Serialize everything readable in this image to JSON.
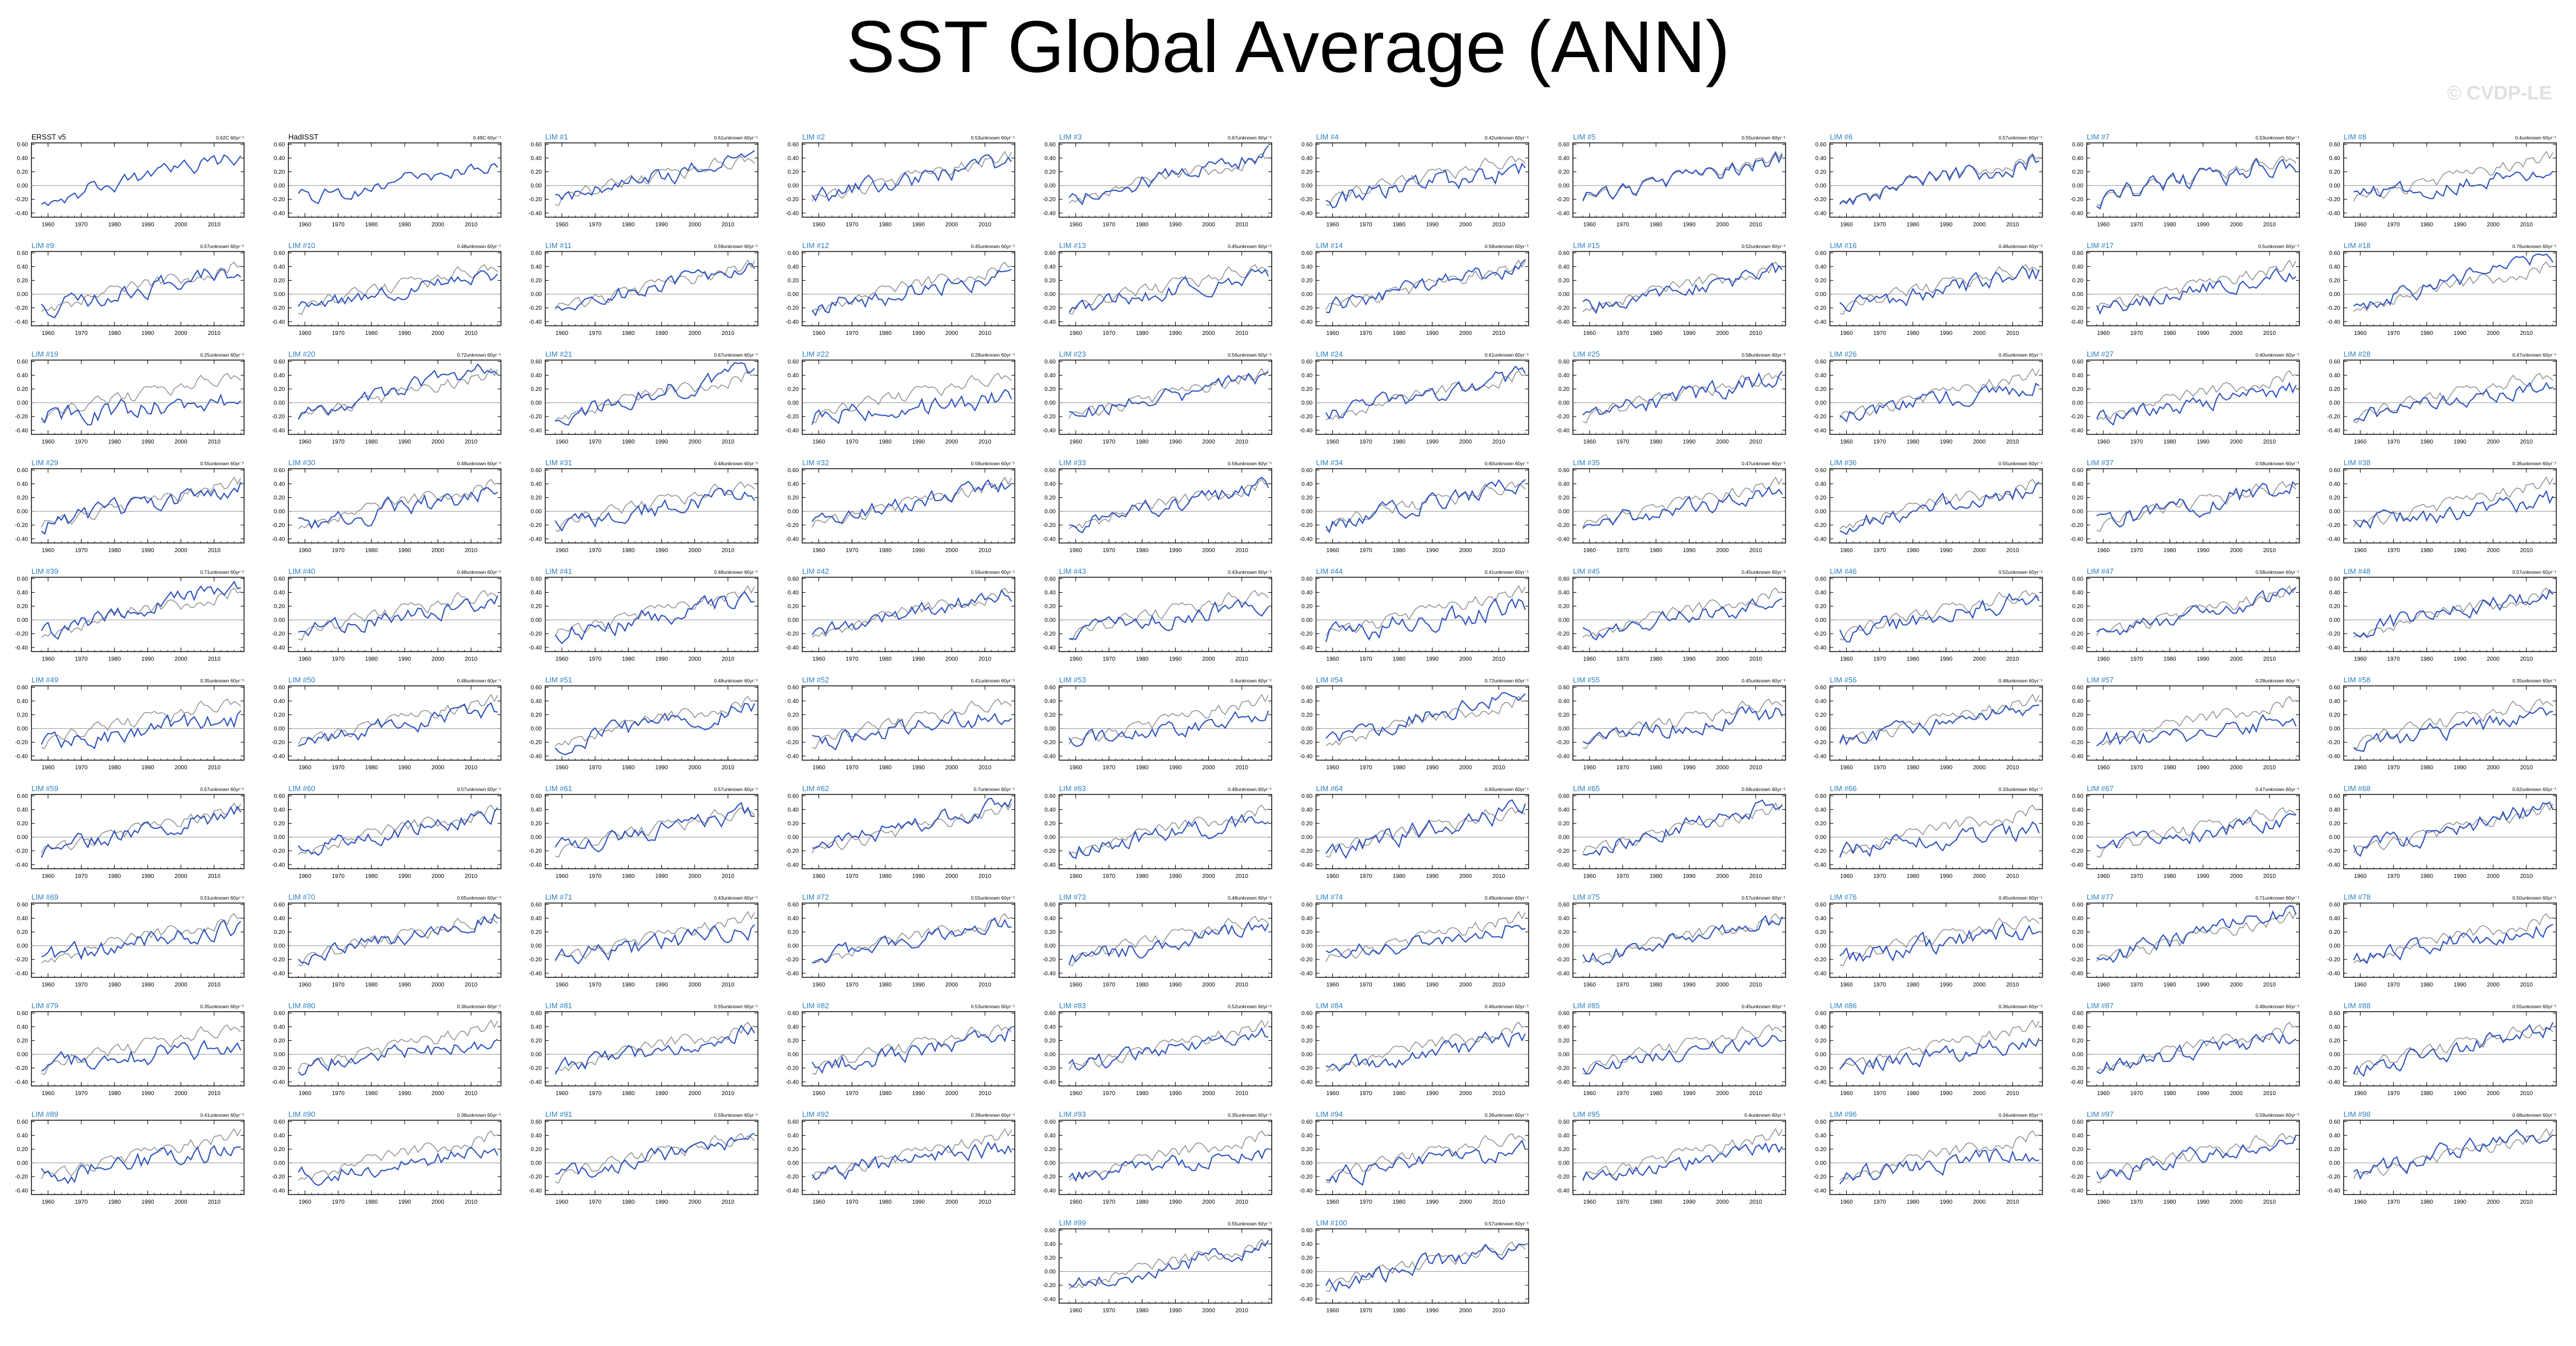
{
  "page": {
    "title": "SST Global Average (ANN)",
    "watermark": "© CVDP-LE"
  },
  "colors": {
    "model_line": "#2a4fbf",
    "obs_line": "#8a8a8a",
    "zero_line": "#9a9a9a",
    "panel_title_obs": "#000000",
    "panel_title_member": "#2a7fbf"
  },
  "chart_data": {
    "type": "line",
    "layout": "small-multiples grid, 10 columns",
    "x_tick_labels": [
      "1960",
      "1970",
      "1980",
      "1990",
      "2000",
      "2010"
    ],
    "y_tick_labels": [
      "0.60",
      "0.40",
      "0.20",
      "0.00",
      "-0.20",
      "-0.40"
    ],
    "xlim": [
      1955,
      2019
    ],
    "ylim": [
      -0.46,
      0.62
    ],
    "zero_line": true,
    "grid": false,
    "panels": [
      {
        "title": "ERSST v5",
        "trend": "0.62C 60yr⁻¹",
        "amp": 0.09,
        "lift": 0.0,
        "obs": true
      },
      {
        "title": "HadISST",
        "trend": "0.49C 60yr⁻¹",
        "amp": 0.09,
        "lift": 0.0,
        "obs": true
      },
      {
        "title": "LIM #1",
        "trend": "0.61unknown 60yr⁻¹",
        "amp": 0.1,
        "lift": 0.0
      },
      {
        "title": "LIM #2",
        "trend": "0.53unknown 60yr⁻¹",
        "amp": 0.11,
        "lift": 0.02
      },
      {
        "title": "LIM #3",
        "trend": "0.67unknown 60yr⁻¹",
        "amp": 0.1,
        "lift": 0.01
      },
      {
        "title": "LIM #4",
        "trend": "0.42unknown 60yr⁻¹",
        "amp": 0.12,
        "lift": 0.0
      },
      {
        "title": "LIM #5",
        "trend": "0.55unknown 60yr⁻¹",
        "amp": 0.1,
        "lift": 0.02
      },
      {
        "title": "LIM #6",
        "trend": "0.57unknown 60yr⁻¹",
        "amp": 0.11,
        "lift": 0.0
      },
      {
        "title": "LIM #7",
        "trend": "0.53unknown 60yr⁻¹",
        "amp": 0.12,
        "lift": 0.01
      },
      {
        "title": "LIM #8",
        "trend": "0.4unknown 60yr⁻¹",
        "amp": 0.1,
        "lift": 0.03
      },
      {
        "title": "LIM #9",
        "trend": "0.57unknown 60yr⁻¹",
        "amp": 0.11,
        "lift": 0.0
      },
      {
        "title": "LIM #10",
        "trend": "0.48unknown 60yr⁻¹",
        "amp": 0.09,
        "lift": 0.0
      },
      {
        "title": "LIM #11",
        "trend": "0.59unknown 60yr⁻¹",
        "amp": 0.1,
        "lift": 0.01
      },
      {
        "title": "LIM #12",
        "trend": "0.45unknown 60yr⁻¹",
        "amp": 0.11,
        "lift": 0.0
      },
      {
        "title": "LIM #13",
        "trend": "0.45unknown 60yr⁻¹",
        "amp": 0.12,
        "lift": 0.0
      },
      {
        "title": "LIM #14",
        "trend": "0.58unknown 60yr⁻¹",
        "amp": 0.1,
        "lift": 0.02
      },
      {
        "title": "LIM #15",
        "trend": "0.52unknown 60yr⁻¹",
        "amp": 0.1,
        "lift": 0.0
      },
      {
        "title": "LIM #16",
        "trend": "0.48unknown 60yr⁻¹",
        "amp": 0.11,
        "lift": 0.01
      },
      {
        "title": "LIM #17",
        "trend": "0.5unknown 60yr⁻¹",
        "amp": 0.11,
        "lift": 0.0
      },
      {
        "title": "LIM #18",
        "trend": "0.76unknown 60yr⁻¹",
        "amp": 0.1,
        "lift": 0.02
      },
      {
        "title": "LIM #19",
        "trend": "0.25unknown 60yr⁻¹",
        "amp": 0.12,
        "lift": 0.0
      },
      {
        "title": "LIM #20",
        "trend": "0.72unknown 60yr⁻¹",
        "amp": 0.1,
        "lift": 0.0
      },
      {
        "title": "LIM #21",
        "trend": "0.67unknown 60yr⁻¹",
        "amp": 0.11,
        "lift": 0.01
      },
      {
        "title": "LIM #22",
        "trend": "0.28unknown 60yr⁻¹",
        "amp": 0.12,
        "lift": 0.0
      },
      {
        "title": "LIM #23",
        "trend": "0.56unknown 60yr⁻¹",
        "amp": 0.1,
        "lift": 0.0
      },
      {
        "title": "LIM #24",
        "trend": "0.61unknown 60yr⁻¹",
        "amp": 0.1,
        "lift": 0.01
      },
      {
        "title": "LIM #25",
        "trend": "0.58unknown 60yr⁻¹",
        "amp": 0.11,
        "lift": 0.0
      },
      {
        "title": "LIM #26",
        "trend": "0.45unknown 60yr⁻¹",
        "amp": 0.11,
        "lift": 0.02
      },
      {
        "title": "LIM #27",
        "trend": "0.40unknown 60yr⁻¹",
        "amp": 0.1,
        "lift": 0.0
      },
      {
        "title": "LIM #28",
        "trend": "0.47unknown 60yr⁻¹",
        "amp": 0.1,
        "lift": 0.0
      },
      {
        "title": "LIM #29",
        "trend": "0.55unknown 60yr⁻¹",
        "amp": 0.11,
        "lift": 0.01
      },
      {
        "title": "LIM #30",
        "trend": "0.49unknown 60yr⁻¹",
        "amp": 0.12,
        "lift": 0.0
      },
      {
        "title": "LIM #31",
        "trend": "0.48unknown 60yr⁻¹",
        "amp": 0.11,
        "lift": 0.0
      },
      {
        "title": "LIM #32",
        "trend": "0.59unknown 60yr⁻¹",
        "amp": 0.1,
        "lift": 0.02
      },
      {
        "title": "LIM #33",
        "trend": "0.56unknown 60yr⁻¹",
        "amp": 0.1,
        "lift": 0.0
      },
      {
        "title": "LIM #34",
        "trend": "0.60unknown 60yr⁻¹",
        "amp": 0.11,
        "lift": 0.01
      },
      {
        "title": "LIM #35",
        "trend": "0.47unknown 60yr⁻¹",
        "amp": 0.1,
        "lift": 0.0
      },
      {
        "title": "LIM #36",
        "trend": "0.55unknown 60yr⁻¹",
        "amp": 0.11,
        "lift": 0.0
      },
      {
        "title": "LIM #37",
        "trend": "0.58unknown 60yr⁻¹",
        "amp": 0.12,
        "lift": 0.02
      },
      {
        "title": "LIM #38",
        "trend": "0.36unknown 60yr⁻¹",
        "amp": 0.11,
        "lift": 0.0
      },
      {
        "title": "LIM #39",
        "trend": "0.71unknown 60yr⁻¹",
        "amp": 0.1,
        "lift": 0.0
      },
      {
        "title": "LIM #40",
        "trend": "0.48unknown 60yr⁻¹",
        "amp": 0.1,
        "lift": 0.01
      },
      {
        "title": "LIM #41",
        "trend": "0.48unknown 60yr⁻¹",
        "amp": 0.12,
        "lift": 0.0
      },
      {
        "title": "LIM #42",
        "trend": "0.56unknown 60yr⁻¹",
        "amp": 0.1,
        "lift": 0.02
      },
      {
        "title": "LIM #43",
        "trend": "0.43unknown 60yr⁻¹",
        "amp": 0.11,
        "lift": 0.0
      },
      {
        "title": "LIM #44",
        "trend": "0.41unknown 60yr⁻¹",
        "amp": 0.13,
        "lift": 0.0
      },
      {
        "title": "LIM #45",
        "trend": "0.45unknown 60yr⁻¹",
        "amp": 0.1,
        "lift": 0.01
      },
      {
        "title": "LIM #46",
        "trend": "0.52unknown 60yr⁻¹",
        "amp": 0.11,
        "lift": 0.0
      },
      {
        "title": "LIM #47",
        "trend": "0.58unknown 60yr⁻¹",
        "amp": 0.1,
        "lift": 0.0
      },
      {
        "title": "LIM #48",
        "trend": "0.57unknown 60yr⁻¹",
        "amp": 0.11,
        "lift": 0.02
      },
      {
        "title": "LIM #49",
        "trend": "0.35unknown 60yr⁻¹",
        "amp": 0.12,
        "lift": 0.0
      },
      {
        "title": "LIM #50",
        "trend": "0.48unknown 60yr⁻¹",
        "amp": 0.1,
        "lift": 0.0
      },
      {
        "title": "LIM #51",
        "trend": "0.48unknown 60yr⁻¹",
        "amp": 0.11,
        "lift": 0.01
      },
      {
        "title": "LIM #52",
        "trend": "0.41unknown 60yr⁻¹",
        "amp": 0.11,
        "lift": 0.0
      },
      {
        "title": "LIM #53",
        "trend": "0.4unknown 60yr⁻¹",
        "amp": 0.1,
        "lift": 0.0
      },
      {
        "title": "LIM #54",
        "trend": "0.72unknown 60yr⁻¹",
        "amp": 0.1,
        "lift": 0.02
      },
      {
        "title": "LIM #55",
        "trend": "0.45unknown 60yr⁻¹",
        "amp": 0.11,
        "lift": 0.0
      },
      {
        "title": "LIM #56",
        "trend": "0.48unknown 60yr⁻¹",
        "amp": 0.1,
        "lift": 0.01
      },
      {
        "title": "LIM #57",
        "trend": "0.28unknown 60yr⁻¹",
        "amp": 0.12,
        "lift": 0.0
      },
      {
        "title": "LIM #58",
        "trend": "0.35unknown 60yr⁻¹",
        "amp": 0.11,
        "lift": 0.0
      },
      {
        "title": "LIM #59",
        "trend": "0.57unknown 60yr⁻¹",
        "amp": 0.11,
        "lift": 0.01
      },
      {
        "title": "LIM #60",
        "trend": "0.57unknown 60yr⁻¹",
        "amp": 0.1,
        "lift": 0.0
      },
      {
        "title": "LIM #61",
        "trend": "0.57unknown 60yr⁻¹",
        "amp": 0.11,
        "lift": 0.0
      },
      {
        "title": "LIM #62",
        "trend": "0.7unknown 60yr⁻¹",
        "amp": 0.1,
        "lift": 0.02
      },
      {
        "title": "LIM #63",
        "trend": "0.48unknown 60yr⁻¹",
        "amp": 0.11,
        "lift": 0.0
      },
      {
        "title": "LIM #64",
        "trend": "0.60unknown 60yr⁻¹",
        "amp": 0.12,
        "lift": 0.0
      },
      {
        "title": "LIM #65",
        "trend": "0.68unknown 60yr⁻¹",
        "amp": 0.1,
        "lift": 0.01
      },
      {
        "title": "LIM #66",
        "trend": "0.33unknown 60yr⁻¹",
        "amp": 0.11,
        "lift": 0.0
      },
      {
        "title": "LIM #67",
        "trend": "0.47unknown 60yr⁻¹",
        "amp": 0.1,
        "lift": 0.0
      },
      {
        "title": "LIM #68",
        "trend": "0.62unknown 60yr⁻¹",
        "amp": 0.11,
        "lift": 0.02
      },
      {
        "title": "LIM #69",
        "trend": "0.51unknown 60yr⁻¹",
        "amp": 0.12,
        "lift": 0.0
      },
      {
        "title": "LIM #70",
        "trend": "0.65unknown 60yr⁻¹",
        "amp": 0.1,
        "lift": 0.0
      },
      {
        "title": "LIM #71",
        "trend": "0.43unknown 60yr⁻¹",
        "amp": 0.11,
        "lift": 0.01
      },
      {
        "title": "LIM #72",
        "trend": "0.55unknown 60yr⁻¹",
        "amp": 0.1,
        "lift": 0.0
      },
      {
        "title": "LIM #73",
        "trend": "0.48unknown 60yr⁻¹",
        "amp": 0.1,
        "lift": 0.0
      },
      {
        "title": "LIM #74",
        "trend": "0.49unknown 60yr⁻¹",
        "amp": 0.11,
        "lift": 0.02
      },
      {
        "title": "LIM #75",
        "trend": "0.57unknown 60yr⁻¹",
        "amp": 0.1,
        "lift": 0.0
      },
      {
        "title": "LIM #76",
        "trend": "0.45unknown 60yr⁻¹",
        "amp": 0.12,
        "lift": 0.0
      },
      {
        "title": "LIM #77",
        "trend": "0.71unknown 60yr⁻¹",
        "amp": 0.1,
        "lift": 0.01
      },
      {
        "title": "LIM #78",
        "trend": "0.50unknown 60yr⁻¹",
        "amp": 0.1,
        "lift": 0.0
      },
      {
        "title": "LIM #79",
        "trend": "0.35unknown 60yr⁻¹",
        "amp": 0.12,
        "lift": 0.0
      },
      {
        "title": "LIM #80",
        "trend": "0.36unknown 60yr⁻¹",
        "amp": 0.11,
        "lift": 0.02
      },
      {
        "title": "LIM #81",
        "trend": "0.55unknown 60yr⁻¹",
        "amp": 0.1,
        "lift": 0.0
      },
      {
        "title": "LIM #82",
        "trend": "0.53unknown 60yr⁻¹",
        "amp": 0.11,
        "lift": 0.0
      },
      {
        "title": "LIM #83",
        "trend": "0.52unknown 60yr⁻¹",
        "amp": 0.1,
        "lift": 0.01
      },
      {
        "title": "LIM #84",
        "trend": "0.46unknown 60yr⁻¹",
        "amp": 0.11,
        "lift": 0.0
      },
      {
        "title": "LIM #85",
        "trend": "0.45unknown 60yr⁻¹",
        "amp": 0.1,
        "lift": 0.0
      },
      {
        "title": "LIM #86",
        "trend": "0.36unknown 60yr⁻¹",
        "amp": 0.11,
        "lift": 0.02
      },
      {
        "title": "LIM #87",
        "trend": "0.49unknown 60yr⁻¹",
        "amp": 0.1,
        "lift": 0.0
      },
      {
        "title": "LIM #88",
        "trend": "0.55unknown 60yr⁻¹",
        "amp": 0.11,
        "lift": 0.0
      },
      {
        "title": "LIM #89",
        "trend": "0.41unknown 60yr⁻¹",
        "amp": 0.12,
        "lift": 0.01
      },
      {
        "title": "LIM #90",
        "trend": "0.38unknown 60yr⁻¹",
        "amp": 0.1,
        "lift": 0.0
      },
      {
        "title": "LIM #91",
        "trend": "0.59unknown 60yr⁻¹",
        "amp": 0.1,
        "lift": 0.0
      },
      {
        "title": "LIM #92",
        "trend": "0.39unknown 60yr⁻¹",
        "amp": 0.11,
        "lift": 0.02
      },
      {
        "title": "LIM #93",
        "trend": "0.35unknown 60yr⁻¹",
        "amp": 0.1,
        "lift": 0.0
      },
      {
        "title": "LIM #94",
        "trend": "0.36unknown 60yr⁻¹",
        "amp": 0.11,
        "lift": 0.0
      },
      {
        "title": "LIM #95",
        "trend": "0.4unknown 60yr⁻¹",
        "amp": 0.1,
        "lift": 0.01
      },
      {
        "title": "LIM #96",
        "trend": "0.34unknown 60yr⁻¹",
        "amp": 0.11,
        "lift": 0.0
      },
      {
        "title": "LIM #97",
        "trend": "0.59unknown 60yr⁻¹",
        "amp": 0.1,
        "lift": 0.0
      },
      {
        "title": "LIM #98",
        "trend": "0.68unknown 60yr⁻¹",
        "amp": 0.11,
        "lift": 0.02
      },
      {
        "title": "LIM #99",
        "trend": "0.55unknown 60yr⁻¹",
        "amp": 0.1,
        "lift": 0.0
      },
      {
        "title": "LIM #100",
        "trend": "0.57unknown 60yr⁻¹",
        "amp": 0.11,
        "lift": 0.0
      }
    ]
  }
}
